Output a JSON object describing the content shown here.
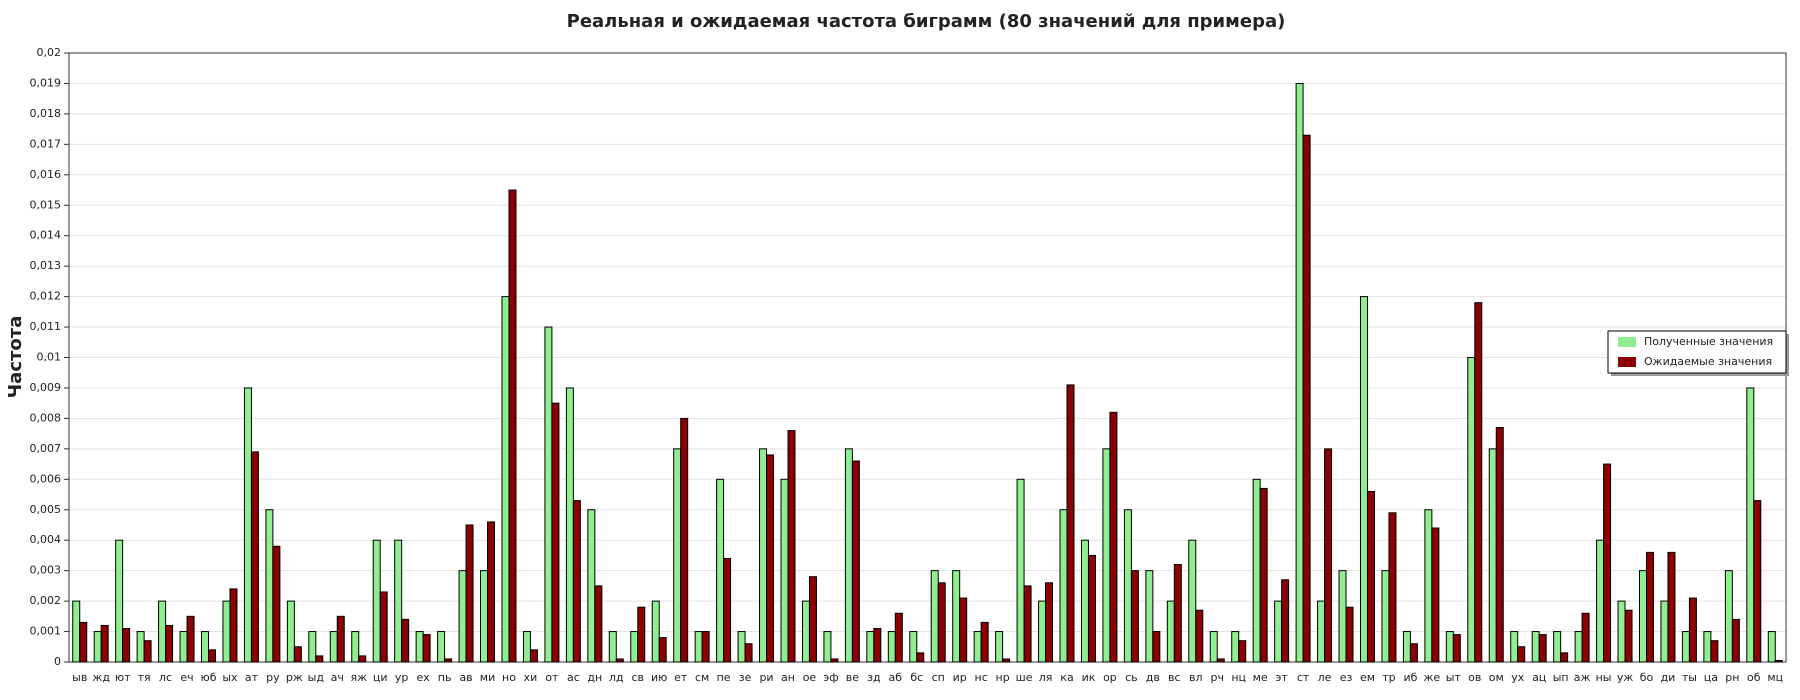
{
  "chart_data": {
    "type": "bar",
    "title": "Реальная и ожидаемая частота биграмм (80 значений для примера)",
    "y_label": "Частота",
    "categories": [
      "ыв",
      "жд",
      "ют",
      "тя",
      "лс",
      "еч",
      "юб",
      "ых",
      "ат",
      "ру",
      "рж",
      "ыд",
      "ач",
      "яж",
      "ци",
      "ур",
      "ех",
      "пь",
      "ав",
      "ми",
      "но",
      "хи",
      "от",
      "ас",
      "дн",
      "лд",
      "св",
      "ию",
      "ет",
      "см",
      "пе",
      "зе",
      "ри",
      "ан",
      "ое",
      "эф",
      "ве",
      "зд",
      "аб",
      "бс",
      "сп",
      "ир",
      "нс",
      "нр",
      "ше",
      "ля",
      "ка",
      "ик",
      "ор",
      "сь",
      "дв",
      "вс",
      "вл",
      "рч",
      "нц",
      "ме",
      "эт",
      "ст",
      "ле",
      "ез",
      "ем",
      "тр",
      "иб",
      "же",
      "ыт",
      "ов",
      "ом",
      "ух",
      "ац",
      "ып",
      "аж",
      "ны",
      "уж",
      "бо",
      "ди",
      "ты",
      "ца",
      "рн",
      "об",
      "мц"
    ],
    "series": [
      {
        "name": "Полученные значения",
        "color": "#90ee90",
        "values": [
          0.002,
          0.001,
          0.004,
          0.001,
          0.002,
          0.001,
          0.001,
          0.002,
          0.009,
          0.005,
          0.002,
          0.001,
          0.001,
          0.001,
          0.004,
          0.004,
          0.001,
          0.001,
          0.003,
          0.003,
          0.012,
          0.001,
          0.011,
          0.009,
          0.005,
          0.001,
          0.001,
          0.002,
          0.007,
          0.001,
          0.006,
          0.001,
          0.007,
          0.006,
          0.002,
          0.001,
          0.007,
          0.001,
          0.001,
          0.001,
          0.003,
          0.003,
          0.001,
          0.001,
          0.006,
          0.002,
          0.005,
          0.004,
          0.007,
          0.005,
          0.003,
          0.002,
          0.004,
          0.001,
          0.001,
          0.006,
          0.002,
          0.019,
          0.002,
          0.003,
          0.012,
          0.003,
          0.001,
          0.005,
          0.001,
          0.01,
          0.007,
          0.001,
          0.001,
          0.001,
          0.001,
          0.004,
          0.002,
          0.003,
          0.002,
          0.001,
          0.001,
          0.003,
          0.009,
          0.001
        ]
      },
      {
        "name": "Ожидаемые значения",
        "color": "#8b0000",
        "values": [
          0.0013,
          0.0012,
          0.0011,
          0.0007,
          0.0012,
          0.0015,
          0.0004,
          0.0024,
          0.0069,
          0.0038,
          0.0005,
          0.0002,
          0.0015,
          0.0002,
          0.0023,
          0.0014,
          0.0009,
          0.0001,
          0.0045,
          0.0046,
          0.0155,
          0.0004,
          0.0085,
          0.0053,
          0.0025,
          0.0001,
          0.0018,
          0.0008,
          0.008,
          0.001,
          0.0034,
          0.0006,
          0.0068,
          0.0076,
          0.0028,
          0.0001,
          0.0066,
          0.0011,
          0.0016,
          0.0003,
          0.0026,
          0.0021,
          0.0013,
          0.0001,
          0.0025,
          0.0026,
          0.0091,
          0.0035,
          0.0082,
          0.003,
          0.001,
          0.0032,
          0.0017,
          0.0001,
          0.0007,
          0.0057,
          0.0027,
          0.0173,
          0.007,
          0.0018,
          0.0056,
          0.0049,
          0.0006,
          0.0044,
          0.0009,
          0.0118,
          0.0077,
          0.0005,
          0.0009,
          0.0003,
          0.0016,
          0.0065,
          0.0017,
          0.0036,
          0.0036,
          0.0021,
          0.0007,
          0.0014,
          0.0053,
          5e-05
        ]
      }
    ],
    "ylim": [
      0,
      0.02
    ],
    "yticks": [
      0,
      {
        "value": 0.001,
        "label": "0,001"
      },
      {
        "value": 0.002,
        "label": "0,002"
      },
      {
        "value": 0.003,
        "label": "0,003"
      },
      {
        "value": 0.004,
        "label": "0,004"
      },
      {
        "value": 0.005,
        "label": "0,005"
      },
      {
        "value": 0.006,
        "label": "0,006"
      },
      {
        "value": 0.007,
        "label": "0,007"
      },
      {
        "value": 0.008,
        "label": "0,008"
      },
      {
        "value": 0.009,
        "label": "0,009"
      },
      {
        "value": 0.01,
        "label": "0,01"
      },
      {
        "value": 0.011,
        "label": "0,011"
      },
      {
        "value": 0.012,
        "label": "0,012"
      },
      {
        "value": 0.013,
        "label": "0,013"
      },
      {
        "value": 0.014,
        "label": "0,014"
      },
      {
        "value": 0.015,
        "label": "0,015"
      },
      {
        "value": 0.016,
        "label": "0,016"
      },
      {
        "value": 0.017,
        "label": "0,017"
      },
      {
        "value": 0.018,
        "label": "0,018"
      },
      {
        "value": 0.019,
        "label": "0,019"
      },
      {
        "value": 0.02,
        "label": "0,02"
      }
    ],
    "grid": true,
    "legend": "right"
  }
}
